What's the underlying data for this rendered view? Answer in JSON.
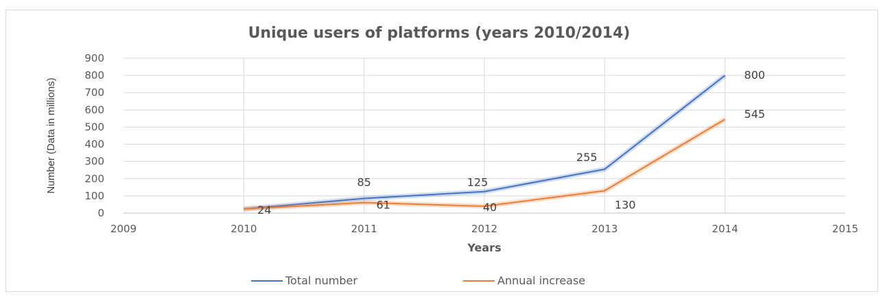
{
  "chart_data": {
    "type": "line",
    "title": "Unique users of platforms (years 2010/2014)",
    "xlabel": "Years",
    "ylabel": "Number (Data in millions)",
    "xlim": [
      2009,
      2015
    ],
    "ylim": [
      0,
      900
    ],
    "x_ticks": [
      2009,
      2010,
      2011,
      2012,
      2013,
      2014,
      2015
    ],
    "y_ticks": [
      0,
      100,
      200,
      300,
      400,
      500,
      600,
      700,
      800,
      900
    ],
    "grid": true,
    "legend_position": "bottom",
    "x": [
      2010,
      2011,
      2012,
      2013,
      2014
    ],
    "series": [
      {
        "name": "Total number",
        "color": "#4472c4",
        "values": [
          24,
          85,
          125,
          255,
          800
        ]
      },
      {
        "name": "Annual increase",
        "color": "#ed7d31",
        "values": [
          24,
          61,
          40,
          130,
          545
        ]
      }
    ]
  }
}
